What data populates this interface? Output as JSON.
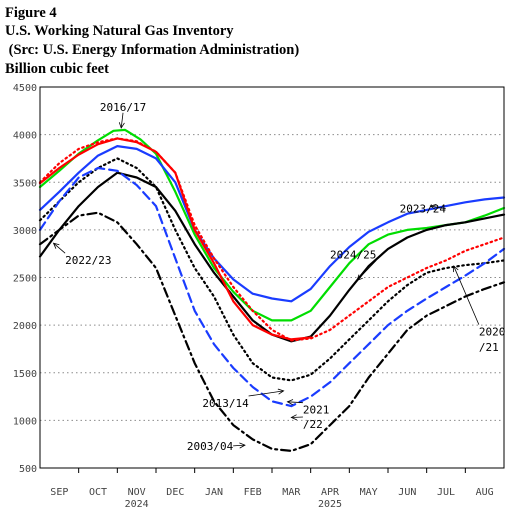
{
  "header": {
    "figure_label": "Figure 4",
    "title": "U.S. Working Natural Gas Inventory",
    "source": " (Src: U.S. Energy Information Administration)",
    "units": "Billion cubic feet"
  },
  "chart_data": {
    "type": "line",
    "title": "U.S. Working Natural Gas Inventory",
    "ylabel": "Billion cubic feet",
    "ylim": [
      500,
      4500
    ],
    "yticks": [
      500,
      1000,
      1500,
      2000,
      2500,
      3000,
      3500,
      4000,
      4500
    ],
    "x_months": [
      "SEP",
      "OCT",
      "NOV",
      "DEC",
      "JAN",
      "FEB",
      "MAR",
      "APR",
      "MAY",
      "JUN",
      "JUL",
      "AUG"
    ],
    "x_years": [
      {
        "label": "2024",
        "month": "NOV"
      },
      {
        "label": "2025",
        "month": "APR"
      }
    ],
    "grid": true,
    "series": [
      {
        "name": "2016/17",
        "color": "#00dd00",
        "style": "solid",
        "x": [
          0,
          0.5,
          1,
          1.5,
          1.9,
          2.2,
          2.6,
          3,
          3.5,
          4,
          4.5,
          5,
          5.5,
          6,
          6.5,
          7,
          7.5,
          8,
          8.5,
          9,
          9.5,
          10,
          10.5,
          11,
          11.5,
          12
        ],
        "values": [
          3450,
          3620,
          3800,
          3940,
          4040,
          4050,
          3950,
          3800,
          3400,
          2950,
          2600,
          2350,
          2150,
          2050,
          2050,
          2150,
          2400,
          2650,
          2850,
          2950,
          3000,
          3020,
          3050,
          3080,
          3150,
          3230
        ]
      },
      {
        "name": "2023/24",
        "color": "#1a3cff",
        "style": "solid",
        "x": [
          0,
          0.5,
          1,
          1.5,
          2,
          2.5,
          3,
          3.5,
          4,
          4.5,
          5,
          5.5,
          6,
          6.5,
          7,
          7.5,
          8,
          8.5,
          9,
          9.5,
          10,
          10.5,
          11,
          11.5,
          12
        ],
        "values": [
          3210,
          3400,
          3600,
          3780,
          3880,
          3850,
          3750,
          3500,
          3000,
          2700,
          2480,
          2330,
          2280,
          2250,
          2380,
          2620,
          2820,
          2980,
          3080,
          3170,
          3210,
          3250,
          3290,
          3320,
          3340
        ]
      },
      {
        "name": "2024/25",
        "color": "#000000",
        "style": "solid",
        "x": [
          0,
          0.5,
          1,
          1.5,
          2,
          2.5,
          3,
          3.5,
          4,
          4.5,
          5,
          5.5,
          6,
          6.5,
          7,
          7.5,
          8,
          8.5,
          9,
          9.5,
          10,
          10.5,
          11,
          11.5,
          12
        ],
        "values": [
          2720,
          3000,
          3250,
          3450,
          3600,
          3550,
          3450,
          3200,
          2850,
          2550,
          2300,
          2050,
          1900,
          1830,
          1880,
          2100,
          2370,
          2620,
          2800,
          2920,
          3000,
          3050,
          3080,
          3120,
          3160
        ]
      },
      {
        "name": "Red",
        "color": "#ff0000",
        "style": "solid",
        "x": [
          0,
          0.5,
          1,
          1.5,
          2,
          2.5,
          3,
          3.5,
          4,
          4.5,
          5,
          5.5,
          6,
          6.5,
          7
        ],
        "values": [
          3490,
          3650,
          3790,
          3900,
          3960,
          3920,
          3820,
          3600,
          3000,
          2650,
          2250,
          2000,
          1900,
          1850,
          1870
        ]
      },
      {
        "name": "Red dotted",
        "color": "#ff0000",
        "style": "dotted",
        "x": [
          0,
          0.5,
          1,
          1.5,
          2,
          2.5,
          3,
          3.5,
          4,
          4.5,
          5,
          5.5,
          6,
          6.5,
          7,
          7.5,
          8,
          8.5,
          9,
          9.5,
          10,
          10.5,
          11,
          11.5,
          12
        ],
        "values": [
          3500,
          3700,
          3850,
          3920,
          3960,
          3930,
          3820,
          3600,
          3050,
          2700,
          2400,
          2150,
          1950,
          1840,
          1860,
          1950,
          2100,
          2250,
          2400,
          2500,
          2600,
          2680,
          2780,
          2850,
          2920
        ]
      },
      {
        "name": "2013/14",
        "color": "#000000",
        "style": "dotted",
        "x": [
          0,
          0.5,
          1,
          1.5,
          2,
          2.5,
          3,
          3.5,
          4,
          4.5,
          5,
          5.5,
          6,
          6.5,
          7,
          7.5,
          8,
          8.5,
          9,
          9.5,
          10,
          10.5,
          11,
          11.5,
          12
        ],
        "values": [
          3100,
          3300,
          3500,
          3650,
          3750,
          3650,
          3450,
          3000,
          2600,
          2300,
          1900,
          1600,
          1450,
          1420,
          1480,
          1650,
          1850,
          2050,
          2250,
          2420,
          2550,
          2600,
          2630,
          2650,
          2680
        ]
      },
      {
        "name": "2021/22",
        "color": "#1a3cff",
        "style": "dashed",
        "x": [
          0,
          0.5,
          1,
          1.5,
          2,
          2.5,
          3,
          3.5,
          4,
          4.5,
          5,
          5.5,
          6,
          6.5,
          7,
          7.5,
          8,
          8.5,
          9,
          9.5,
          10,
          10.5,
          11,
          11.5,
          12
        ],
        "values": [
          3000,
          3300,
          3550,
          3650,
          3620,
          3470,
          3250,
          2700,
          2150,
          1800,
          1550,
          1350,
          1200,
          1150,
          1250,
          1400,
          1600,
          1800,
          2000,
          2150,
          2280,
          2400,
          2520,
          2650,
          2800
        ]
      },
      {
        "name": "2022/23",
        "color": "#000000",
        "style": "dashdot",
        "x": [
          0,
          0.5,
          1,
          1.5,
          2,
          2.5,
          3,
          3.5,
          4,
          4.5,
          5,
          5.5,
          6,
          6.5,
          7,
          7.5,
          8,
          8.5,
          9,
          9.5,
          10,
          10.5,
          11,
          11.5,
          12
        ],
        "values": [
          2850,
          3000,
          3150,
          3180,
          3080,
          2850,
          2600,
          2100,
          1600,
          1200,
          950,
          800,
          700,
          680,
          750,
          950,
          1150,
          1450,
          1700,
          1950,
          2100,
          2200,
          2300,
          2380,
          2450
        ]
      }
    ],
    "annotations": [
      {
        "text": "2016/17",
        "x": 1.55,
        "y": 4250,
        "ax": 2.1,
        "ay": 4070
      },
      {
        "text": "2023/24",
        "x": 9.3,
        "y": 3180,
        "ax": 10.1,
        "ay": 3250
      },
      {
        "text": "2022/23",
        "x": 0.65,
        "y": 2640,
        "ax": 0.35,
        "ay": 2860
      },
      {
        "text": "2024/25",
        "x": 7.5,
        "y": 2700,
        "ax": 8.2,
        "ay": 2470
      },
      {
        "text": "2020",
        "x": 11.35,
        "y": 1890,
        "ax": 10.7,
        "ay": 2620
      },
      {
        "text": "/21",
        "x": 11.35,
        "y": 1730,
        "ax": null,
        "ay": null
      },
      {
        "text": "2013/14",
        "x": 4.2,
        "y": 1140,
        "ax": 6.3,
        "ay": 1310
      },
      {
        "text": "2021",
        "x": 6.8,
        "y": 1070,
        "ax": 6.4,
        "ay": 1195
      },
      {
        "text": "/22",
        "x": 6.8,
        "y": 920,
        "ax": 6.5,
        "ay": 1030
      },
      {
        "text": "2003/04",
        "x": 3.8,
        "y": 690,
        "ax": 5.3,
        "ay": 740
      }
    ]
  }
}
